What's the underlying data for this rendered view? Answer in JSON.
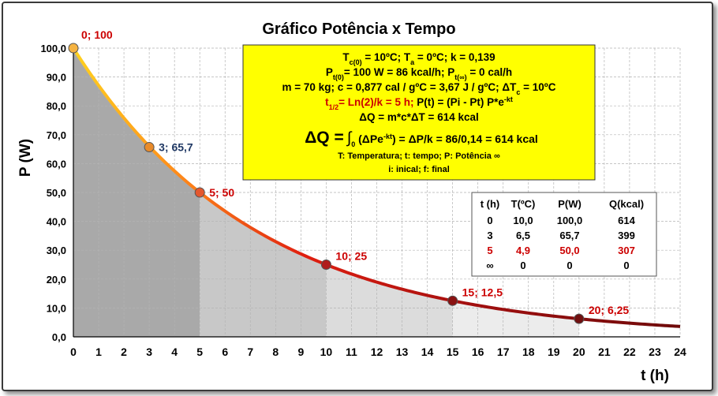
{
  "chart_data": {
    "type": "line",
    "title": "Gráfico Potência x Tempo",
    "xlabel": "t (h)",
    "ylabel": "P (W)",
    "xlim": [
      0,
      24
    ],
    "ylim": [
      0,
      100
    ],
    "x_ticks": [
      "0",
      "1",
      "2",
      "3",
      "4",
      "5",
      "6",
      "7",
      "8",
      "9",
      "10",
      "11",
      "12",
      "13",
      "14",
      "15",
      "16",
      "17",
      "18",
      "19",
      "20",
      "21",
      "22",
      "23",
      "24"
    ],
    "y_ticks": [
      "0,0",
      "10,0",
      "20,0",
      "30,0",
      "40,0",
      "50,0",
      "60,0",
      "70,0",
      "80,0",
      "90,0",
      "100,0"
    ],
    "grid": true,
    "curve": {
      "formula_p0": 100,
      "formula_k": 0.1386
    },
    "points": [
      {
        "x": 0,
        "y": 100,
        "label": "0; 100",
        "label_color": "#cc0000",
        "fill": "#f5b342"
      },
      {
        "x": 3,
        "y": 65.7,
        "label": "3; 65,7",
        "label_color": "#1f3864",
        "fill": "#e98b2a"
      },
      {
        "x": 5,
        "y": 50,
        "label": "5; 50",
        "label_color": "#cc0000",
        "fill": "#e4572e"
      },
      {
        "x": 10,
        "y": 25,
        "label": "10; 25",
        "label_color": "#cc0000",
        "fill": "#b01c1c"
      },
      {
        "x": 15,
        "y": 12.5,
        "label": "15; 12,5",
        "label_color": "#cc0000",
        "fill": "#8a1212"
      },
      {
        "x": 20,
        "y": 6.25,
        "label": "20; 6,25",
        "label_color": "#cc0000",
        "fill": "#701010"
      }
    ],
    "shading": [
      {
        "from": 0,
        "to": 5,
        "color": "#a9a9a9"
      },
      {
        "from": 5,
        "to": 10,
        "color": "#c8c8c8"
      },
      {
        "from": 10,
        "to": 15,
        "color": "#dcdcdc"
      },
      {
        "from": 15,
        "to": 20,
        "color": "#ececec"
      }
    ]
  },
  "info_box": {
    "l1a": "T",
    "l1b": "c(0)",
    "l1c": " = 10ºC; T",
    "l1d": "a",
    "l1e": " = 0ºC; k = 0,139",
    "l2a": "P",
    "l2b": "t(0)",
    "l2c": "= 100 W = 86 kcal/h; P",
    "l2d": "t(∞)",
    "l2e": " = 0 cal/h",
    "l3a": "m = 70 kg; c = 0,877 cal / gºC = 3,67 J / gºC; ΔT",
    "l3b": "c",
    "l3c": " = 10ºC",
    "l4a": "t",
    "l4b": "1/2",
    "l4c": "= Ln(2)/k = 5 h;",
    "l4d": " P(t) = (Pi - Pt) P*e",
    "l4e": "-kt",
    "l5": "ΔQ = m*c*ΔT = 614 kcal",
    "l6a": "ΔQ =",
    "l6b": "∫",
    "l6c": "0",
    "l6d": " (ΔPe",
    "l6e": "-kt",
    "l6f": ") = ΔP/k = 86/0,14 = 614 kcal",
    "l7": "T: Temperatura; t: tempo; P: Potência ∞",
    "l8": "i: inical; f: final",
    "accent": "#cc0000",
    "background": "#ffff00"
  },
  "table": {
    "headers": [
      "t (h)",
      "T(ºC)",
      "P(W)",
      "Q(kcal)"
    ],
    "rows": [
      {
        "cells": [
          "0",
          "10,0",
          "100,0",
          "614"
        ],
        "color": "#000000"
      },
      {
        "cells": [
          "3",
          "6,5",
          "65,7",
          "399"
        ],
        "color": "#000000"
      },
      {
        "cells": [
          "5",
          "4,9",
          "50,0",
          "307"
        ],
        "color": "#cc0000"
      },
      {
        "cells": [
          "∞",
          "0",
          "0",
          "0"
        ],
        "color": "#000000"
      }
    ]
  }
}
